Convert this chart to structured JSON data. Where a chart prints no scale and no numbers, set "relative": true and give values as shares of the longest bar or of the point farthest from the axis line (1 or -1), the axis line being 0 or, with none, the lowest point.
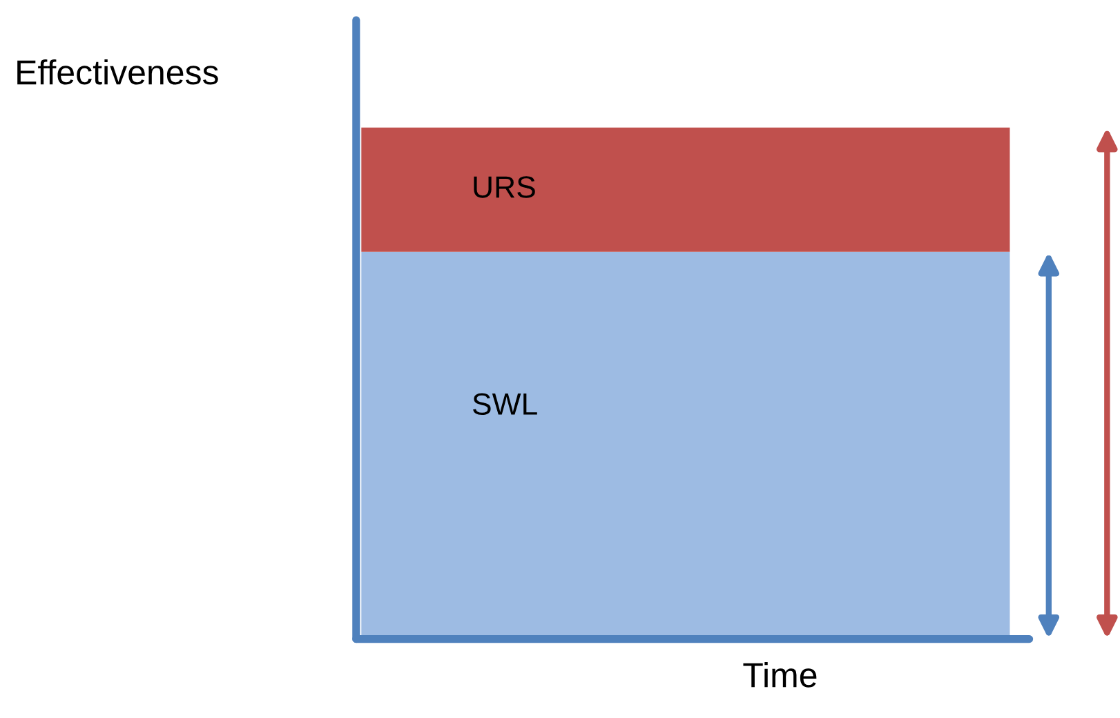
{
  "chart_data": {
    "type": "bar",
    "stacked": true,
    "relative": true,
    "categories": [
      null
    ],
    "xlabel": "Time",
    "ylabel": "Effectiveness",
    "series": [
      {
        "name": "SWL",
        "color": "#9dbbe3",
        "values": [
          0.757
        ]
      },
      {
        "name": "URS",
        "color": "#c0504d",
        "values": [
          0.243
        ]
      }
    ]
  }
}
